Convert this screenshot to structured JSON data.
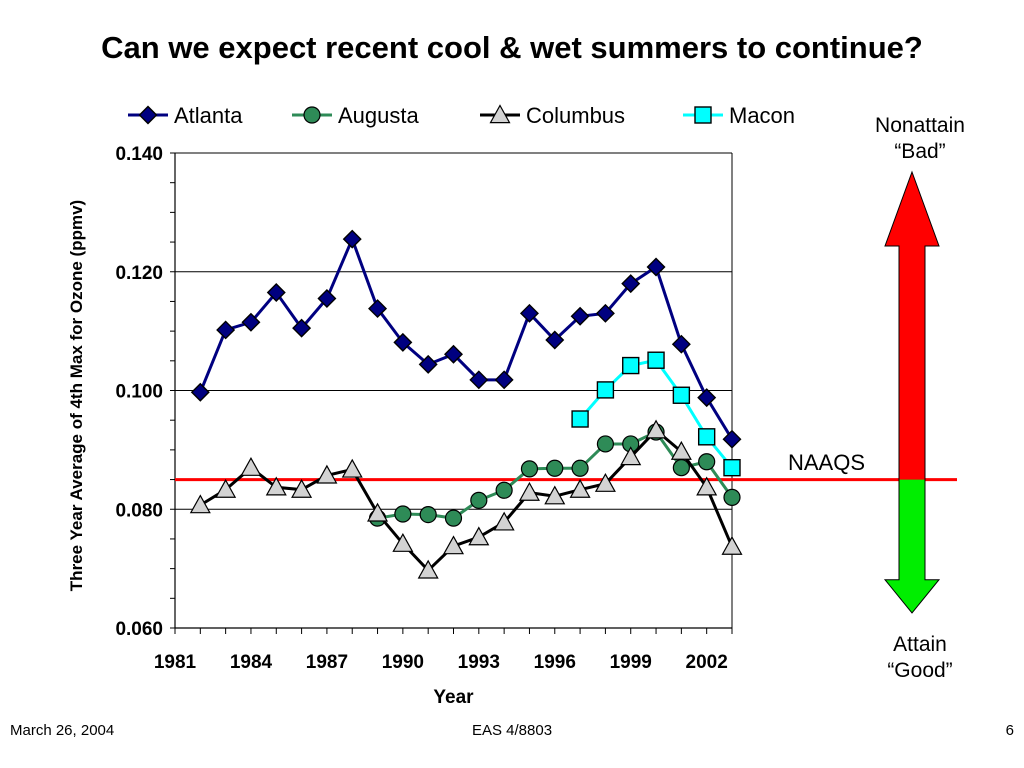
{
  "slide": {
    "title": "Can we expect recent cool & wet summers to continue?",
    "footer_date": "March 26, 2004",
    "footer_course": "EAS 4/8803",
    "footer_page": "6"
  },
  "annotations": {
    "top_line1": "Nonattain",
    "top_line2": "“Bad”",
    "bottom_line1": "Attain",
    "bottom_line2": "“Good”",
    "naaqs_label": "NAAQS",
    "naaqs_value": 0.085,
    "bad_color": "#ff0000",
    "good_color": "#00ee00",
    "naaqs_color": "#ff0000"
  },
  "chart_data": {
    "type": "line",
    "title": "",
    "xlabel": "Year",
    "ylabel": "Three Year Average of 4th Max for Ozone (ppmv)",
    "xlim": [
      1981,
      2003
    ],
    "ylim": [
      0.06,
      0.14
    ],
    "xticks": [
      "1981",
      "1984",
      "1987",
      "1990",
      "1993",
      "1996",
      "1999",
      "2002"
    ],
    "xtick_values": [
      1981,
      1984,
      1987,
      1990,
      1993,
      1996,
      1999,
      2002
    ],
    "yticks": [
      "0.060",
      "0.080",
      "0.100",
      "0.120",
      "0.140"
    ],
    "ytick_values": [
      0.06,
      0.08,
      0.1,
      0.12,
      0.14
    ],
    "grid": "horizontal major",
    "legend_position": "top",
    "series": [
      {
        "name": "Atlanta",
        "marker": "diamond",
        "line_color": "#000080",
        "marker_color": "#000080",
        "x": [
          1982,
          1983,
          1984,
          1985,
          1986,
          1987,
          1988,
          1989,
          1990,
          1991,
          1992,
          1993,
          1994,
          1995,
          1996,
          1997,
          1998,
          1999,
          2000,
          2001,
          2002,
          2003
        ],
        "values": [
          0.0997,
          0.1102,
          0.1115,
          0.1165,
          0.1105,
          0.1155,
          0.1255,
          0.1138,
          0.1081,
          0.1044,
          0.1061,
          0.1018,
          0.1018,
          0.113,
          0.1085,
          0.1125,
          0.113,
          0.118,
          0.1208,
          0.1078,
          0.0988,
          0.0918
        ]
      },
      {
        "name": "Augusta",
        "marker": "circle",
        "line_color": "#2e8b57",
        "marker_color": "#2e8b57",
        "x": [
          1989,
          1990,
          1991,
          1992,
          1993,
          1994,
          1995,
          1996,
          1997,
          1998,
          1999,
          2000,
          2001,
          2002,
          2003
        ],
        "values": [
          0.0785,
          0.0792,
          0.0791,
          0.0785,
          0.0815,
          0.0832,
          0.0868,
          0.0869,
          0.0869,
          0.091,
          0.091,
          0.093,
          0.087,
          0.088,
          0.082
        ]
      },
      {
        "name": "Columbus",
        "marker": "triangle",
        "line_color": "#000000",
        "marker_color": "#d3d3d3",
        "x": [
          1982,
          1983,
          1984,
          1985,
          1986,
          1987,
          1988,
          1989,
          1990,
          1991,
          1992,
          1993,
          1994,
          1995,
          1996,
          1997,
          1998,
          1999,
          2000,
          2001,
          2002,
          2003
        ],
        "values": [
          0.0807,
          0.0833,
          0.087,
          0.0837,
          0.0833,
          0.0857,
          0.0867,
          0.0793,
          0.0742,
          0.0697,
          0.0738,
          0.0753,
          0.0778,
          0.0828,
          0.0822,
          0.0833,
          0.0843,
          0.0888,
          0.0933,
          0.0897,
          0.0837,
          0.0737
        ]
      },
      {
        "name": "Macon",
        "marker": "square",
        "line_color": "#00ffff",
        "marker_color": "#00ffff",
        "x": [
          1997,
          1998,
          1999,
          2000,
          2001,
          2002,
          2003
        ],
        "values": [
          0.0952,
          0.1001,
          0.1042,
          0.1051,
          0.0992,
          0.0922,
          0.087
        ]
      }
    ]
  }
}
